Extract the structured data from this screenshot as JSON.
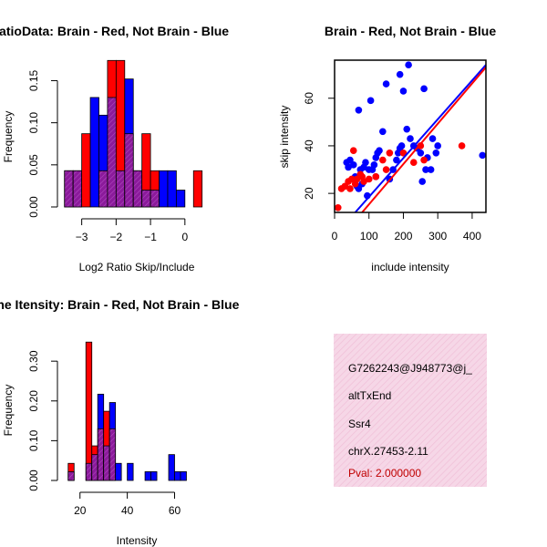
{
  "colors": {
    "brain": "#ff0000",
    "not_brain": "#0000ff",
    "overlap": "#8b1a9b",
    "info_bg": "#f6d7e7",
    "pval": "#c00000"
  },
  "chart_data": [
    {
      "id": "ratio_hist",
      "type": "bar",
      "title": "RatioData: Brain - Red, Not Brain - Blue",
      "xlabel": "Log2 Ratio Skip/Include",
      "ylabel": "Frequency",
      "xlim": [
        -3.6,
        0.8
      ],
      "ylim": [
        0,
        0.17
      ],
      "xticks": [
        -3,
        -2,
        -1,
        0
      ],
      "xtick_labels": [
        "−3",
        "−2",
        "−1",
        "0"
      ],
      "yticks": [
        0.0,
        0.05,
        0.1,
        0.15
      ],
      "ytick_labels": [
        "0.00",
        "0.05",
        "0.10",
        "0.15"
      ],
      "bin_start": -3.5,
      "bin_width": 0.25,
      "series": [
        {
          "name": "Brain",
          "color": "red",
          "values": [
            0.043,
            0.043,
            0.087,
            0.0,
            0.043,
            0.174,
            0.174,
            0.087,
            0.043,
            0.087,
            0.043,
            0.0,
            0.0,
            0.0,
            0.0,
            0.043
          ]
        },
        {
          "name": "Not Brain",
          "color": "blue",
          "values": [
            0.043,
            0.043,
            0.0,
            0.13,
            0.109,
            0.13,
            0.043,
            0.152,
            0.043,
            0.02,
            0.02,
            0.043,
            0.043,
            0.02,
            0.0,
            0.0
          ]
        }
      ]
    },
    {
      "id": "scatter",
      "type": "scatter",
      "title": "Brain - Red, Not Brain - Blue",
      "xlabel": "include intensity",
      "ylabel": "skip intensity",
      "xlim": [
        0,
        440
      ],
      "ylim": [
        12,
        76
      ],
      "xticks": [
        0,
        100,
        200,
        300,
        400
      ],
      "xtick_labels": [
        "0",
        "100",
        "200",
        "300",
        "400"
      ],
      "yticks": [
        20,
        40,
        60
      ],
      "ytick_labels": [
        "20",
        "40",
        "60"
      ],
      "series": [
        {
          "name": "Not Brain",
          "color": "blue",
          "points": [
            [
              35,
              33
            ],
            [
              40,
              31
            ],
            [
              45,
              34
            ],
            [
              55,
              32
            ],
            [
              60,
              27
            ],
            [
              65,
              23
            ],
            [
              70,
              22
            ],
            [
              75,
              30
            ],
            [
              80,
              24
            ],
            [
              85,
              31
            ],
            [
              90,
              33
            ],
            [
              95,
              19
            ],
            [
              100,
              30
            ],
            [
              110,
              30
            ],
            [
              115,
              32
            ],
            [
              120,
              35
            ],
            [
              125,
              37
            ],
            [
              130,
              38
            ],
            [
              140,
              46
            ],
            [
              150,
              66
            ],
            [
              160,
              26
            ],
            [
              170,
              30
            ],
            [
              180,
              34
            ],
            [
              185,
              37
            ],
            [
              190,
              39
            ],
            [
              195,
              40
            ],
            [
              200,
              63
            ],
            [
              210,
              47
            ],
            [
              215,
              74
            ],
            [
              220,
              43
            ],
            [
              230,
              40
            ],
            [
              240,
              39
            ],
            [
              250,
              37
            ],
            [
              260,
              64
            ],
            [
              265,
              30
            ],
            [
              270,
              35
            ],
            [
              280,
              30
            ],
            [
              285,
              43
            ],
            [
              295,
              37
            ],
            [
              300,
              40
            ],
            [
              430,
              36
            ],
            [
              70,
              55
            ],
            [
              105,
              59
            ],
            [
              190,
              70
            ],
            [
              120,
              27
            ],
            [
              255,
              25
            ]
          ]
        },
        {
          "name": "Brain",
          "color": "red",
          "points": [
            [
              10,
              14
            ],
            [
              20,
              22
            ],
            [
              30,
              23
            ],
            [
              40,
              25
            ],
            [
              45,
              22
            ],
            [
              50,
              26
            ],
            [
              55,
              38
            ],
            [
              60,
              24
            ],
            [
              65,
              26
            ],
            [
              75,
              28
            ],
            [
              80,
              27
            ],
            [
              85,
              25
            ],
            [
              100,
              26
            ],
            [
              120,
              27
            ],
            [
              140,
              34
            ],
            [
              150,
              30
            ],
            [
              160,
              37
            ],
            [
              200,
              37
            ],
            [
              250,
              40
            ],
            [
              260,
              34
            ],
            [
              370,
              40
            ],
            [
              230,
              33
            ]
          ]
        }
      ],
      "lines": [
        {
          "name": "Not Brain fit",
          "color": "blue",
          "x0": 60,
          "y0": 12,
          "x1": 440,
          "y1": 74
        },
        {
          "name": "Brain fit",
          "color": "red",
          "x0": 80,
          "y0": 12,
          "x1": 440,
          "y1": 73
        }
      ]
    },
    {
      "id": "intensity_hist",
      "type": "bar",
      "title": "Gene Itensity: Brain - Red, Not Brain - Blue",
      "xlabel": "Intensity",
      "ylabel": "Frequency",
      "xlim": [
        12,
        76
      ],
      "ylim": [
        0,
        0.36
      ],
      "xticks": [
        20,
        40,
        60
      ],
      "xtick_labels": [
        "20",
        "40",
        "60"
      ],
      "yticks": [
        0.0,
        0.1,
        0.2,
        0.3
      ],
      "ytick_labels": [
        "0.00",
        "0.10",
        "0.20",
        "0.30"
      ],
      "bin_start": 15,
      "bin_width": 2.5,
      "series": [
        {
          "name": "Brain",
          "color": "red",
          "values": [
            0.043,
            0.0,
            0.0,
            0.348,
            0.087,
            0.13,
            0.174,
            0.13,
            0.0,
            0.0,
            0.0,
            0.0,
            0.0,
            0.0,
            0.0,
            0.0,
            0.0,
            0.0,
            0.0,
            0.0
          ]
        },
        {
          "name": "Not Brain",
          "color": "blue",
          "values": [
            0.022,
            0.0,
            0.0,
            0.043,
            0.065,
            0.217,
            0.087,
            0.196,
            0.043,
            0.0,
            0.043,
            0.0,
            0.0,
            0.022,
            0.022,
            0.0,
            0.0,
            0.065,
            0.022,
            0.022
          ]
        }
      ]
    }
  ],
  "info_box": {
    "lines": [
      "G7262243@J948773@j_",
      "altTxEnd",
      "Ssr4",
      "chrX.27453-2.11"
    ],
    "pval": "Pval: 2.000000"
  }
}
